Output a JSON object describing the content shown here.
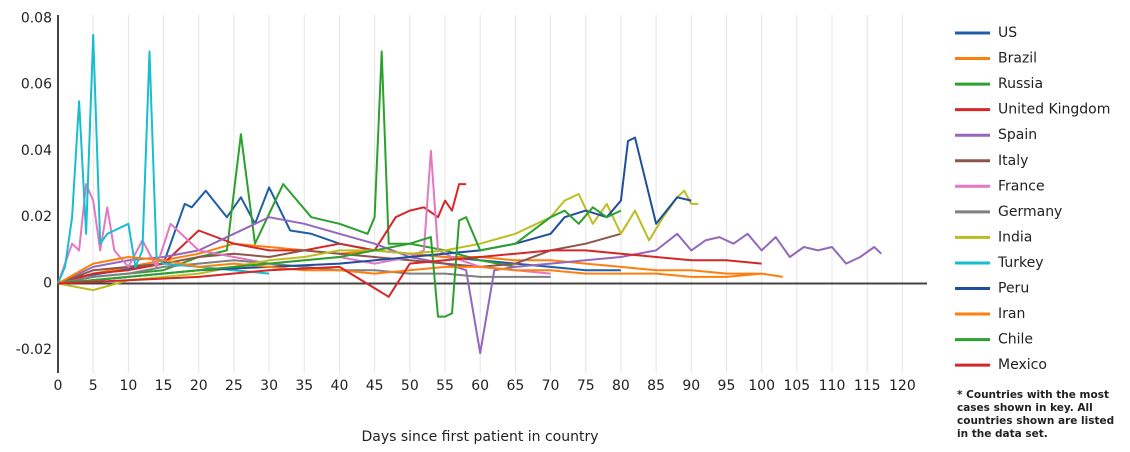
{
  "chart_data": {
    "type": "line",
    "x_label": "Days since first patient in country",
    "xlim": [
      0,
      123.5
    ],
    "ylim": [
      -0.027,
      0.081
    ],
    "xticks": [
      0,
      5,
      10,
      15,
      20,
      25,
      30,
      35,
      40,
      45,
      50,
      55,
      60,
      65,
      70,
      75,
      80,
      85,
      90,
      95,
      100,
      105,
      110,
      115,
      120
    ],
    "yticks": [
      -0.02,
      0,
      0.02,
      0.04,
      0.06,
      0.08
    ],
    "yticks_labels_note_free": null,
    "grid": "x",
    "note": [
      "* Countries with the most",
      "cases shown in key. All",
      "countries shown are listed",
      "in the data set."
    ],
    "series": [
      {
        "name": "US",
        "color": "#1f5fa8",
        "x": [
          0,
          3,
          6,
          9,
          12,
          15,
          18,
          19,
          21,
          24,
          26,
          28,
          30,
          33,
          36,
          40,
          45,
          50,
          55,
          60,
          65,
          70,
          75,
          80
        ],
        "values": [
          0,
          0.002,
          0.003,
          0.004,
          0.005,
          0.006,
          0.024,
          0.023,
          0.028,
          0.02,
          0.026,
          0.018,
          0.029,
          0.016,
          0.015,
          0.012,
          0.01,
          0.009,
          0.008,
          0.007,
          0.006,
          0.005,
          0.004,
          0.004
        ]
      },
      {
        "name": "Brazil",
        "color": "#ff7f0e",
        "x": [
          0,
          5,
          10,
          15,
          20,
          25,
          30,
          35,
          40,
          45,
          50,
          55,
          60,
          65,
          70,
          75,
          80,
          85,
          90,
          95,
          100
        ],
        "values": [
          0,
          0.003,
          0.005,
          0.007,
          0.009,
          0.012,
          0.011,
          0.01,
          0.009,
          0.01,
          0.009,
          0.008,
          0.008,
          0.007,
          0.007,
          0.006,
          0.005,
          0.004,
          0.004,
          0.003,
          0.003
        ]
      },
      {
        "name": "Russia",
        "color": "#2ca02c",
        "x": [
          0,
          5,
          10,
          15,
          20,
          24,
          26,
          28,
          32,
          36,
          40,
          44,
          45,
          46,
          47,
          50,
          55,
          60,
          65
        ],
        "values": [
          0,
          0.002,
          0.003,
          0.004,
          0.008,
          0.01,
          0.045,
          0.012,
          0.03,
          0.02,
          0.018,
          0.015,
          0.02,
          0.07,
          0.012,
          0.012,
          0.01,
          0.007,
          0.005
        ]
      },
      {
        "name": "United Kingdom",
        "color": "#d62728",
        "x": [
          0,
          5,
          10,
          15,
          20,
          25,
          30,
          35,
          40,
          45,
          48,
          50,
          52,
          54,
          55,
          56,
          57,
          58
        ],
        "values": [
          0,
          0.003,
          0.004,
          0.006,
          0.016,
          0.012,
          0.01,
          0.01,
          0.012,
          0.01,
          0.02,
          0.022,
          0.023,
          0.02,
          0.025,
          0.022,
          0.03,
          0.03
        ]
      },
      {
        "name": "Spain",
        "color": "#9467bd",
        "x": [
          0,
          5,
          10,
          15,
          20,
          25,
          30,
          35,
          40,
          45,
          50,
          55,
          58,
          60,
          62,
          65,
          70,
          75,
          80,
          85,
          88,
          90,
          92,
          94,
          96,
          98,
          100,
          102,
          104,
          106,
          108,
          110,
          112,
          114,
          116,
          117
        ],
        "values": [
          0,
          0.005,
          0.007,
          0.008,
          0.01,
          0.015,
          0.02,
          0.018,
          0.015,
          0.012,
          0.008,
          0.006,
          0.004,
          -0.021,
          0.004,
          0.005,
          0.006,
          0.007,
          0.008,
          0.01,
          0.015,
          0.01,
          0.013,
          0.014,
          0.012,
          0.015,
          0.01,
          0.014,
          0.008,
          0.011,
          0.01,
          0.011,
          0.006,
          0.008,
          0.011,
          0.009
        ]
      },
      {
        "name": "Italy",
        "color": "#8c564b",
        "x": [
          0,
          5,
          10,
          15,
          20,
          25,
          30,
          35,
          40,
          45,
          50,
          55,
          60,
          65,
          70,
          75,
          80
        ],
        "values": [
          0,
          0.004,
          0.005,
          0.006,
          0.008,
          0.009,
          0.008,
          0.01,
          0.009,
          0.008,
          0.007,
          0.006,
          0.005,
          0.006,
          0.01,
          0.012,
          0.015
        ]
      },
      {
        "name": "France",
        "color": "#e377c2",
        "x": [
          0,
          2,
          3,
          4,
          5,
          6,
          7,
          8,
          10,
          12,
          14,
          16,
          20,
          25,
          30,
          35,
          40,
          45,
          50,
          52,
          53,
          54,
          56,
          60,
          65,
          70
        ],
        "values": [
          0,
          0.012,
          0.01,
          0.03,
          0.025,
          0.01,
          0.023,
          0.01,
          0.005,
          0.013,
          0.005,
          0.018,
          0.01,
          0.008,
          0.006,
          0.007,
          0.008,
          0.006,
          0.008,
          0.01,
          0.04,
          0.01,
          0.008,
          0.005,
          0.004,
          0.003
        ]
      },
      {
        "name": "Germany",
        "color": "#7f7f7f",
        "x": [
          0,
          5,
          10,
          15,
          20,
          25,
          30,
          35,
          40,
          45,
          50,
          55,
          60,
          65,
          70
        ],
        "values": [
          0,
          0.002,
          0.003,
          0.005,
          0.006,
          0.007,
          0.006,
          0.005,
          0.004,
          0.004,
          0.003,
          0.003,
          0.002,
          0.002,
          0.002
        ]
      },
      {
        "name": "India",
        "color": "#bcbd22",
        "x": [
          0,
          5,
          10,
          15,
          20,
          25,
          30,
          35,
          40,
          45,
          50,
          55,
          60,
          65,
          70,
          72,
          74,
          76,
          78,
          80,
          82,
          84,
          86,
          88,
          89,
          90,
          91
        ],
        "values": [
          0,
          -0.002,
          0.001,
          0.002,
          0.003,
          0.005,
          0.007,
          0.008,
          0.01,
          0.01,
          0.009,
          0.01,
          0.012,
          0.015,
          0.02,
          0.025,
          0.027,
          0.018,
          0.024,
          0.015,
          0.022,
          0.013,
          0.02,
          0.026,
          0.028,
          0.024,
          0.024
        ]
      },
      {
        "name": "Turkey",
        "color": "#17becf",
        "x": [
          0,
          1,
          2,
          3,
          4,
          5,
          6,
          7,
          8,
          10,
          11,
          12,
          13,
          14,
          15,
          20,
          25,
          30
        ],
        "values": [
          0,
          0.005,
          0.02,
          0.055,
          0.015,
          0.075,
          0.012,
          0.015,
          0.016,
          0.018,
          0.005,
          0.01,
          0.07,
          0.008,
          0.006,
          0.005,
          0.004,
          0.003
        ]
      },
      {
        "name": "Peru",
        "color": "#1f4e9c",
        "x": [
          0,
          10,
          20,
          30,
          40,
          50,
          60,
          65,
          70,
          72,
          75,
          78,
          80,
          81,
          82,
          85,
          88,
          90
        ],
        "values": [
          0,
          0.002,
          0.004,
          0.005,
          0.006,
          0.008,
          0.01,
          0.012,
          0.015,
          0.02,
          0.022,
          0.02,
          0.025,
          0.043,
          0.044,
          0.018,
          0.026,
          0.025
        ]
      },
      {
        "name": "Iran",
        "color": "#ff7f0e",
        "x": [
          0,
          5,
          10,
          15,
          20,
          25,
          30,
          35,
          40,
          45,
          50,
          55,
          60,
          65,
          70,
          75,
          80,
          85,
          90,
          95,
          100,
          103
        ],
        "values": [
          0,
          0.006,
          0.008,
          0.007,
          0.005,
          0.006,
          0.005,
          0.004,
          0.004,
          0.003,
          0.004,
          0.005,
          0.005,
          0.004,
          0.004,
          0.003,
          0.003,
          0.003,
          0.002,
          0.002,
          0.003,
          0.002
        ]
      },
      {
        "name": "Chile",
        "color": "#2ca02c",
        "x": [
          0,
          10,
          20,
          30,
          40,
          45,
          50,
          53,
          54,
          55,
          56,
          57,
          58,
          60,
          65,
          70,
          72,
          74,
          76,
          78,
          80
        ],
        "values": [
          0,
          0.002,
          0.004,
          0.006,
          0.008,
          0.01,
          0.012,
          0.014,
          -0.01,
          -0.01,
          -0.009,
          0.019,
          0.02,
          0.01,
          0.012,
          0.02,
          0.022,
          0.018,
          0.023,
          0.02,
          0.022
        ]
      },
      {
        "name": "Mexico",
        "color": "#d62728",
        "x": [
          0,
          10,
          20,
          30,
          40,
          47,
          50,
          55,
          60,
          65,
          70,
          75,
          80,
          85,
          90,
          95,
          100
        ],
        "values": [
          0,
          0.001,
          0.002,
          0.004,
          0.005,
          -0.004,
          0.006,
          0.007,
          0.008,
          0.009,
          0.01,
          0.01,
          0.009,
          0.008,
          0.007,
          0.007,
          0.006
        ]
      }
    ]
  }
}
